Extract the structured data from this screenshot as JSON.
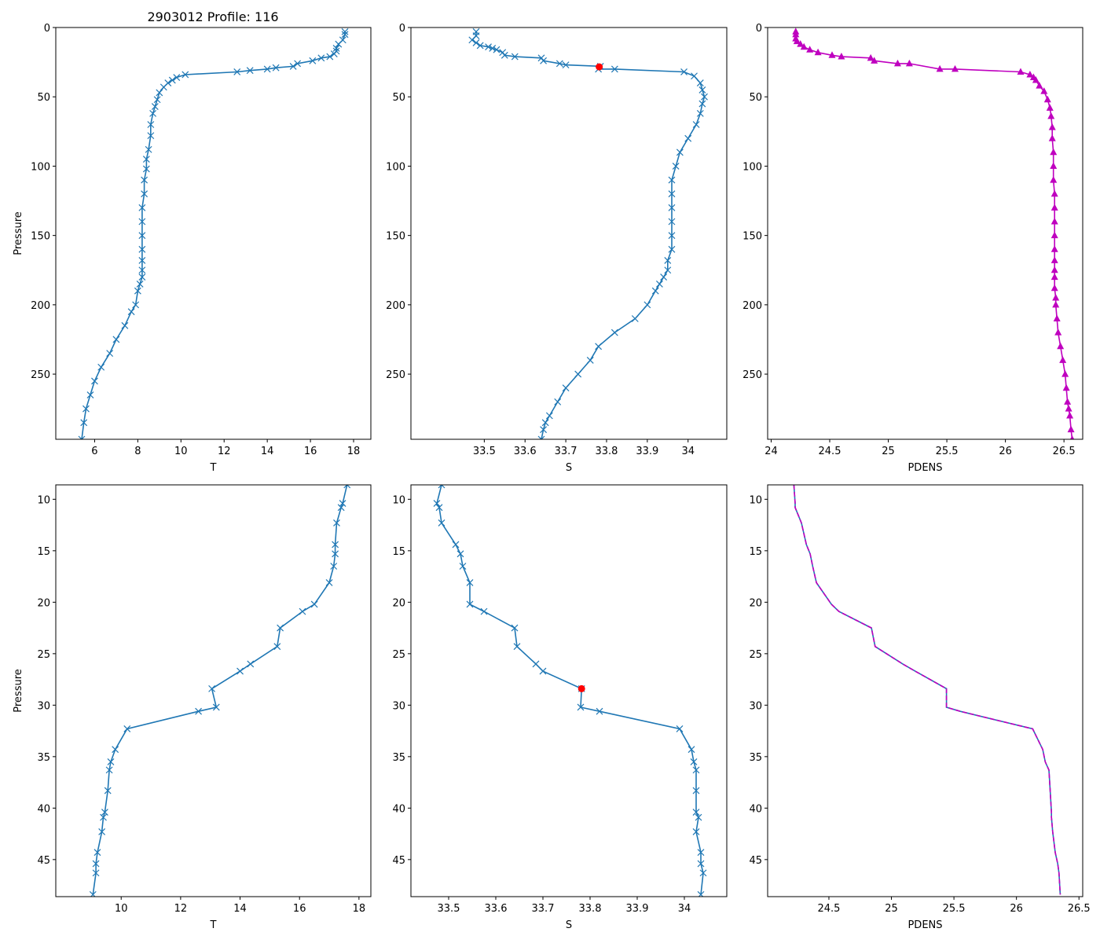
{
  "figure_title": "2903012 Profile: 116",
  "colors": {
    "line": "#1f77b4",
    "marker_red": "#ff0000",
    "pdens": "#bf00bf"
  },
  "chart_data": [
    {
      "type": "line",
      "panel": "top-left",
      "xlabel": "T",
      "ylabel": "Pressure",
      "y_inverted": true,
      "xlim": [
        4.2,
        18.8
      ],
      "ylim": [
        297,
        0
      ],
      "xticks": [
        6,
        8,
        10,
        12,
        14,
        16,
        18
      ],
      "yticks": [
        0,
        50,
        100,
        150,
        200,
        250
      ],
      "marker": "x",
      "color": "#1f77b4",
      "x": [
        17.6,
        17.6,
        17.5,
        17.3,
        17.2,
        17.2,
        17.1,
        16.9,
        16.5,
        16.1,
        15.4,
        15.2,
        14.4,
        14.0,
        13.2,
        12.6,
        10.2,
        9.8,
        9.6,
        9.4,
        9.2,
        9.0,
        8.9,
        8.8,
        8.7,
        8.6,
        8.6,
        8.5,
        8.4,
        8.4,
        8.3,
        8.3,
        8.2,
        8.2,
        8.2,
        8.2,
        8.2,
        8.2,
        8.2,
        8.1,
        8.0,
        7.9,
        7.7,
        7.4,
        7.0,
        6.7,
        6.3,
        6.0,
        5.8,
        5.6,
        5.5,
        5.4
      ],
      "y": [
        3,
        5,
        9,
        12,
        15,
        17,
        19,
        21,
        22,
        24,
        26,
        28,
        29,
        30,
        31,
        32,
        34,
        36,
        38,
        40,
        43,
        47,
        52,
        57,
        62,
        70,
        78,
        88,
        95,
        102,
        110,
        120,
        130,
        140,
        150,
        160,
        168,
        175,
        180,
        185,
        190,
        200,
        205,
        215,
        225,
        235,
        245,
        255,
        265,
        275,
        285,
        297
      ]
    },
    {
      "type": "line",
      "panel": "top-middle",
      "xlabel": "S",
      "ylabel": "",
      "y_inverted": true,
      "xlim": [
        33.32,
        34.095
      ],
      "ylim": [
        297,
        0
      ],
      "xticks": [
        33.5,
        33.6,
        33.7,
        33.8,
        33.9,
        34.0
      ],
      "yticks": [
        0,
        50,
        100,
        150,
        200,
        250
      ],
      "marker": "x",
      "color": "#1f77b4",
      "x": [
        33.48,
        33.48,
        33.47,
        33.48,
        33.49,
        33.51,
        33.52,
        33.53,
        33.545,
        33.55,
        33.575,
        33.64,
        33.645,
        33.685,
        33.7,
        33.785,
        33.78,
        33.82,
        33.99,
        34.015,
        34.03,
        34.035,
        34.04,
        34.035,
        34.03,
        34.02,
        34.0,
        33.98,
        33.97,
        33.96,
        33.96,
        33.96,
        33.96,
        33.96,
        33.96,
        33.95,
        33.95,
        33.94,
        33.93,
        33.92,
        33.9,
        33.87,
        33.82,
        33.78,
        33.76,
        33.73,
        33.7,
        33.68,
        33.66,
        33.65,
        33.645,
        33.64
      ],
      "y": [
        3,
        6,
        9,
        11,
        13,
        14,
        15,
        16,
        18,
        20,
        21,
        22,
        24,
        26,
        27,
        28,
        30,
        30,
        32,
        35,
        40,
        45,
        50,
        55,
        62,
        70,
        80,
        90,
        100,
        110,
        120,
        130,
        140,
        150,
        160,
        168,
        175,
        180,
        185,
        190,
        200,
        210,
        220,
        230,
        240,
        250,
        260,
        270,
        280,
        285,
        290,
        297
      ]
    },
    {
      "type": "line",
      "panel": "top-right",
      "xlabel": "PDENS",
      "ylabel": "",
      "y_inverted": true,
      "xlim": [
        23.97,
        26.66
      ],
      "ylim": [
        297,
        0
      ],
      "xticks": [
        24.0,
        24.5,
        25.0,
        25.5,
        26.0,
        26.5
      ],
      "yticks": [
        0,
        50,
        100,
        150,
        200,
        250
      ],
      "marker": "triangle",
      "color": "#bf00bf",
      "x": [
        24.21,
        24.21,
        24.21,
        24.22,
        24.25,
        24.28,
        24.33,
        24.4,
        24.52,
        24.6,
        24.85,
        24.88,
        25.08,
        25.18,
        25.44,
        25.57,
        26.13,
        26.21,
        26.24,
        26.26,
        26.29,
        26.33,
        26.36,
        26.38,
        26.39,
        26.4,
        26.4,
        26.41,
        26.41,
        26.41,
        26.42,
        26.42,
        26.42,
        26.42,
        26.42,
        26.42,
        26.42,
        26.42,
        26.42,
        26.43,
        26.43,
        26.44,
        26.45,
        26.47,
        26.49,
        26.51,
        26.52,
        26.53,
        26.54,
        26.55,
        26.56,
        26.57
      ],
      "y": [
        3,
        5,
        8,
        10,
        12,
        14,
        16,
        18,
        20,
        21,
        22,
        24,
        26,
        26,
        30,
        30,
        32,
        34,
        36,
        38,
        42,
        46,
        52,
        58,
        64,
        72,
        80,
        90,
        100,
        110,
        120,
        130,
        140,
        150,
        160,
        168,
        175,
        180,
        188,
        195,
        200,
        210,
        220,
        230,
        240,
        250,
        260,
        270,
        275,
        280,
        290,
        297
      ]
    },
    {
      "type": "line",
      "panel": "bottom-left",
      "xlabel": "T",
      "ylabel": "Pressure",
      "y_inverted": true,
      "xlim": [
        7.8,
        18.4
      ],
      "ylim": [
        48.6,
        8.6
      ],
      "xticks": [
        10,
        12,
        14,
        16,
        18
      ],
      "yticks": [
        10,
        15,
        20,
        25,
        30,
        35,
        40,
        45
      ],
      "marker": "x",
      "color": "#1f77b4",
      "x": [
        17.6,
        17.45,
        17.4,
        17.25,
        17.2,
        17.2,
        17.15,
        17.0,
        16.5,
        16.1,
        15.35,
        15.25,
        14.35,
        14.0,
        13.05,
        13.2,
        12.6,
        10.2,
        9.8,
        9.65,
        9.6,
        9.55,
        9.45,
        9.4,
        9.35,
        9.2,
        9.15,
        9.15,
        9.05
      ],
      "y": [
        8.6,
        10.4,
        10.8,
        12.3,
        14.4,
        15.3,
        16.5,
        18.1,
        20.2,
        20.9,
        22.5,
        24.3,
        26.0,
        26.7,
        28.4,
        30.2,
        30.6,
        32.3,
        34.3,
        35.5,
        36.3,
        38.3,
        40.4,
        40.9,
        42.3,
        44.3,
        45.4,
        46.3,
        48.4
      ]
    },
    {
      "type": "line",
      "panel": "bottom-middle",
      "xlabel": "S",
      "ylabel": "",
      "y_inverted": true,
      "xlim": [
        33.42,
        34.09
      ],
      "ylim": [
        48.6,
        8.6
      ],
      "xticks": [
        33.5,
        33.6,
        33.7,
        33.8,
        33.9,
        34.0
      ],
      "yticks": [
        10,
        15,
        20,
        25,
        30,
        35,
        40,
        45
      ],
      "marker": "x",
      "color": "#1f77b4",
      "x": [
        33.485,
        33.475,
        33.48,
        33.485,
        33.515,
        33.525,
        33.53,
        33.545,
        33.545,
        33.575,
        33.64,
        33.645,
        33.685,
        33.7,
        33.782,
        33.78,
        33.82,
        33.99,
        34.015,
        34.02,
        34.025,
        34.025,
        34.025,
        34.03,
        34.025,
        34.035,
        34.035,
        34.04,
        34.035
      ],
      "y": [
        8.6,
        10.4,
        10.8,
        12.3,
        14.4,
        15.3,
        16.5,
        18.1,
        20.2,
        20.9,
        22.5,
        24.3,
        26.0,
        26.7,
        28.4,
        30.2,
        30.6,
        32.3,
        34.3,
        35.5,
        36.3,
        38.3,
        40.4,
        40.9,
        42.3,
        44.3,
        45.4,
        46.3,
        48.4
      ]
    },
    {
      "type": "line",
      "panel": "bottom-right",
      "xlabel": "PDENS",
      "ylabel": "",
      "y_inverted": true,
      "xlim": [
        24.01,
        26.53
      ],
      "ylim": [
        48.6,
        8.6
      ],
      "xticks": [
        24.5,
        25.0,
        25.5,
        26.0,
        26.5
      ],
      "yticks": [
        10,
        15,
        20,
        25,
        30,
        35,
        40,
        45
      ],
      "marker": "none",
      "color": "#1f77b4",
      "dashed_overlay_color": "#bf00bf",
      "x": [
        24.22,
        24.23,
        24.23,
        24.28,
        24.32,
        24.35,
        24.37,
        24.4,
        24.52,
        24.58,
        24.84,
        24.87,
        25.09,
        25.19,
        25.44,
        25.44,
        25.55,
        26.13,
        26.21,
        26.23,
        26.26,
        26.27,
        26.28,
        26.28,
        26.29,
        26.31,
        26.33,
        26.34,
        26.35
      ],
      "y": [
        8.6,
        10.4,
        10.8,
        12.3,
        14.4,
        15.3,
        16.5,
        18.1,
        20.2,
        20.9,
        22.5,
        24.3,
        26.0,
        26.7,
        28.4,
        30.2,
        30.6,
        32.3,
        34.3,
        35.5,
        36.3,
        38.3,
        40.4,
        40.9,
        42.3,
        44.3,
        45.4,
        46.3,
        48.4
      ]
    }
  ],
  "highlight": {
    "x": 33.782,
    "y": 28.4,
    "color": "#ff0000",
    "panels": [
      "top-middle",
      "bottom-middle"
    ]
  }
}
